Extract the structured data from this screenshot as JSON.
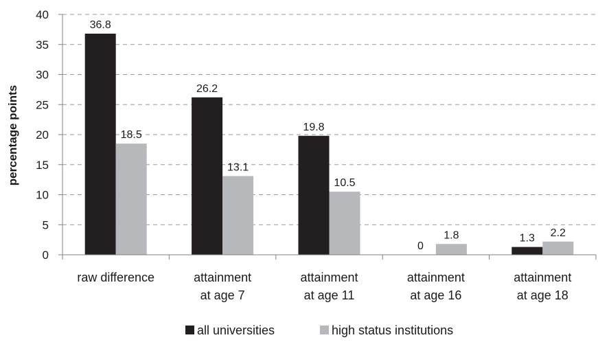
{
  "chart_data": {
    "type": "bar",
    "categories": [
      [
        "raw difference"
      ],
      [
        "attainment",
        "at age 7"
      ],
      [
        "attainment",
        "at age 11"
      ],
      [
        "attainment",
        "at age 16"
      ],
      [
        "attainment",
        "at age 18"
      ]
    ],
    "series": [
      {
        "name": "all universities",
        "color": "#231f20",
        "values": [
          36.8,
          26.2,
          19.8,
          0,
          1.3
        ]
      },
      {
        "name": "high status institutions",
        "color": "#b7b8bb",
        "values": [
          18.5,
          13.1,
          10.5,
          1.8,
          2.2
        ]
      }
    ],
    "ylabel": "percentage points",
    "xlabel": "",
    "title": "",
    "ylim": [
      0,
      40
    ],
    "yticks": [
      0,
      5,
      10,
      15,
      20,
      25,
      30,
      35,
      40
    ],
    "grid": "dashed horizontal",
    "legend_position": "bottom"
  }
}
